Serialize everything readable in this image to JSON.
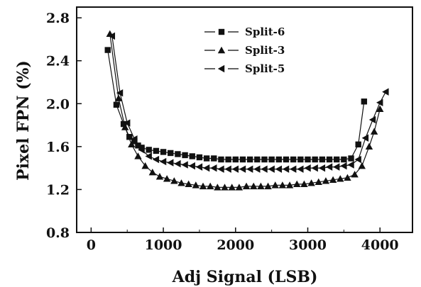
{
  "chart_data": {
    "type": "line",
    "xlabel": "Adj Signal (LSB)",
    "ylabel": "Pixel FPN (%)",
    "xlim": [
      -200,
      4450
    ],
    "ylim": [
      0.8,
      2.9
    ],
    "xticks": [
      0,
      1000,
      2000,
      3000,
      4000
    ],
    "yticks": [
      0.8,
      1.2,
      1.6,
      2.0,
      2.4,
      2.8
    ],
    "xtick_labels": [
      "0",
      "1000",
      "2000",
      "3000",
      "4000"
    ],
    "ytick_labels": [
      "0.8",
      "1.2",
      "1.6",
      "2.0",
      "2.4",
      "2.8"
    ],
    "grid": false,
    "legend_position": "top-center",
    "series": [
      {
        "name": "Split-6",
        "marker": "square",
        "x": [
          230,
          350,
          450,
          530,
          600,
          650,
          700,
          800,
          900,
          1000,
          1100,
          1200,
          1300,
          1400,
          1500,
          1600,
          1700,
          1800,
          1900,
          2000,
          2100,
          2200,
          2300,
          2400,
          2500,
          2600,
          2700,
          2800,
          2900,
          3000,
          3100,
          3200,
          3300,
          3400,
          3500,
          3600,
          3700,
          3780
        ],
        "y": [
          2.5,
          1.99,
          1.81,
          1.69,
          1.65,
          1.61,
          1.59,
          1.57,
          1.56,
          1.55,
          1.54,
          1.53,
          1.52,
          1.51,
          1.5,
          1.49,
          1.49,
          1.48,
          1.48,
          1.48,
          1.48,
          1.48,
          1.48,
          1.48,
          1.48,
          1.48,
          1.48,
          1.48,
          1.48,
          1.48,
          1.48,
          1.48,
          1.48,
          1.48,
          1.48,
          1.49,
          1.62,
          2.02
        ]
      },
      {
        "name": "Split-3",
        "marker": "triangle-up",
        "x": [
          260,
          380,
          470,
          560,
          650,
          750,
          850,
          950,
          1050,
          1150,
          1250,
          1350,
          1450,
          1550,
          1650,
          1750,
          1850,
          1950,
          2050,
          2150,
          2250,
          2350,
          2450,
          2550,
          2650,
          2750,
          2850,
          2950,
          3050,
          3150,
          3250,
          3350,
          3450,
          3550,
          3650,
          3750,
          3850,
          3920,
          4000
        ],
        "y": [
          2.65,
          2.05,
          1.78,
          1.62,
          1.51,
          1.42,
          1.36,
          1.32,
          1.3,
          1.28,
          1.26,
          1.25,
          1.24,
          1.23,
          1.23,
          1.22,
          1.22,
          1.22,
          1.22,
          1.23,
          1.23,
          1.23,
          1.23,
          1.24,
          1.24,
          1.24,
          1.25,
          1.25,
          1.26,
          1.27,
          1.28,
          1.29,
          1.3,
          1.31,
          1.34,
          1.42,
          1.6,
          1.74,
          1.95
        ]
      },
      {
        "name": "Split-5",
        "marker": "triangle-left",
        "x": [
          290,
          400,
          500,
          600,
          700,
          800,
          900,
          1000,
          1100,
          1200,
          1300,
          1400,
          1500,
          1600,
          1700,
          1800,
          1900,
          2000,
          2100,
          2200,
          2300,
          2400,
          2500,
          2600,
          2700,
          2800,
          2900,
          3000,
          3100,
          3200,
          3300,
          3400,
          3500,
          3600,
          3700,
          3800,
          3900,
          4000,
          4080
        ],
        "y": [
          2.63,
          2.1,
          1.82,
          1.67,
          1.57,
          1.51,
          1.48,
          1.46,
          1.45,
          1.44,
          1.43,
          1.42,
          1.41,
          1.4,
          1.4,
          1.39,
          1.39,
          1.39,
          1.39,
          1.39,
          1.39,
          1.39,
          1.39,
          1.39,
          1.39,
          1.39,
          1.39,
          1.4,
          1.4,
          1.4,
          1.41,
          1.41,
          1.42,
          1.43,
          1.48,
          1.68,
          1.85,
          2.01,
          2.11
        ]
      }
    ]
  }
}
